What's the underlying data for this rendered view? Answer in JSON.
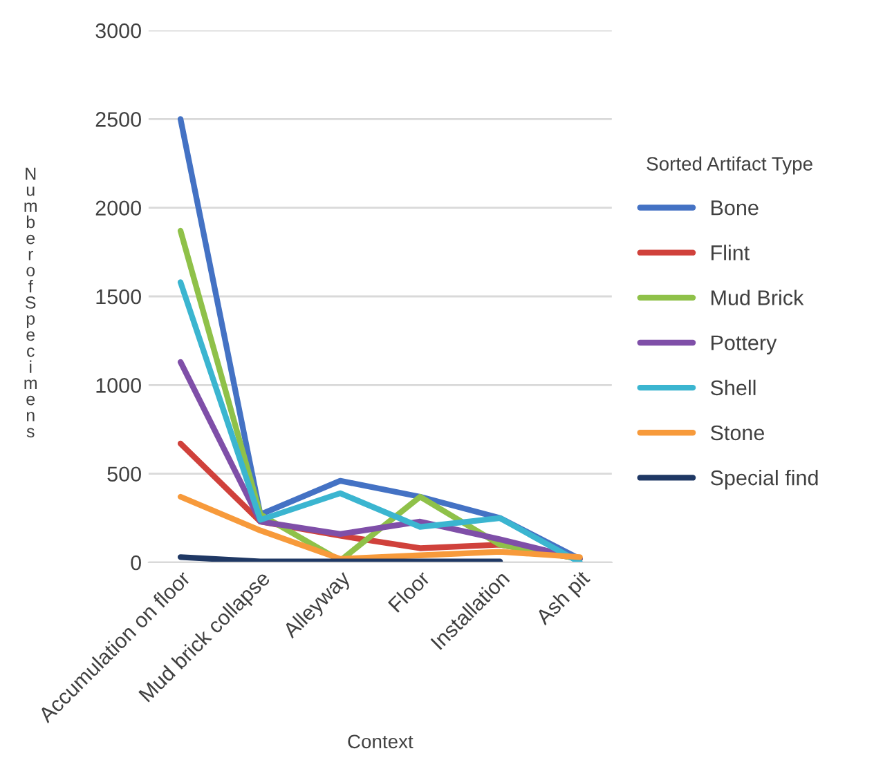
{
  "chart_data": {
    "type": "line",
    "xlabel": "Context",
    "ylabel": "Number of Specimens",
    "legend_title": "Sorted Artifact Type",
    "categories": [
      "Accumulation on floor",
      "Mud brick collapse",
      "Alleyway",
      "Floor",
      "Installation",
      "Ash pit"
    ],
    "ylim": [
      0,
      3000
    ],
    "yticks": [
      0,
      500,
      1000,
      1500,
      2000,
      2500,
      3000
    ],
    "grid": "y",
    "legend": "right",
    "marker": "none",
    "line_style": "solid",
    "series": [
      {
        "name": "Bone",
        "color": "#4472c4",
        "values": [
          2500,
          270,
          460,
          370,
          250,
          20
        ]
      },
      {
        "name": "Flint",
        "color": "#d0413b",
        "values": [
          670,
          230,
          150,
          80,
          100,
          20
        ]
      },
      {
        "name": "Mud Brick",
        "color": "#8fc149",
        "values": [
          1870,
          270,
          10,
          370,
          100,
          20
        ]
      },
      {
        "name": "Pottery",
        "color": "#7f4fa8",
        "values": [
          1130,
          230,
          160,
          230,
          130,
          20
        ]
      },
      {
        "name": "Shell",
        "color": "#3bb5d0",
        "values": [
          1580,
          240,
          390,
          200,
          250,
          0
        ]
      },
      {
        "name": "Stone",
        "color": "#f79a3b",
        "values": [
          370,
          180,
          20,
          40,
          60,
          30
        ]
      },
      {
        "name": "Special find",
        "color": "#1f3864",
        "values": [
          30,
          5,
          5,
          5,
          5,
          null
        ]
      }
    ]
  }
}
